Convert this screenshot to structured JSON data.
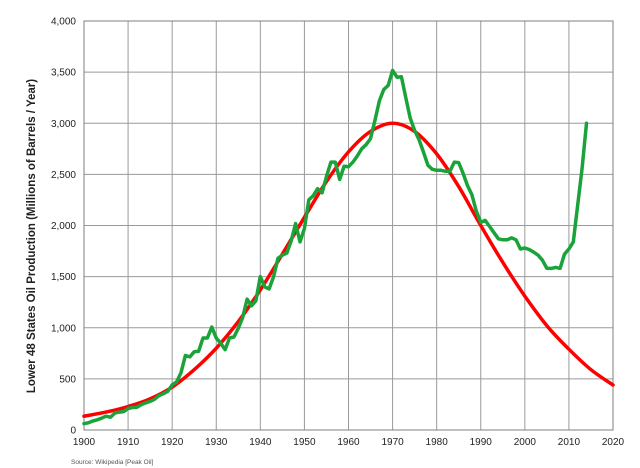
{
  "chart_data": {
    "type": "line",
    "title": "",
    "xlabel": "",
    "ylabel": "Lower 48 States Oil Production (Millions of Barrels / Year)",
    "source": "Source: Wikipedia [Peak Oil]",
    "xlim": [
      1900,
      2020
    ],
    "ylim": [
      0,
      4000
    ],
    "x_ticks": [
      1900,
      1910,
      1920,
      1930,
      1940,
      1950,
      1960,
      1970,
      1980,
      1990,
      2000,
      2010,
      2020
    ],
    "y_ticks": [
      0,
      500,
      1000,
      1500,
      2000,
      2500,
      3000,
      3500,
      4000
    ],
    "y_tick_labels": [
      "0",
      "500",
      "1,000",
      "1,500",
      "2,000",
      "2,500",
      "3,000",
      "3,500",
      "4,000"
    ],
    "grid": true,
    "legend": "none",
    "series": [
      {
        "color": "#ff0000",
        "style": "smooth-curve",
        "points": [
          [
            1900,
            135
          ],
          [
            1905,
            175
          ],
          [
            1910,
            230
          ],
          [
            1915,
            305
          ],
          [
            1920,
            420
          ],
          [
            1925,
            590
          ],
          [
            1930,
            800
          ],
          [
            1935,
            1060
          ],
          [
            1940,
            1370
          ],
          [
            1945,
            1720
          ],
          [
            1950,
            2080
          ],
          [
            1955,
            2430
          ],
          [
            1960,
            2720
          ],
          [
            1965,
            2920
          ],
          [
            1970,
            3000
          ],
          [
            1975,
            2920
          ],
          [
            1980,
            2700
          ],
          [
            1985,
            2380
          ],
          [
            1990,
            2000
          ],
          [
            1995,
            1640
          ],
          [
            2000,
            1310
          ],
          [
            2005,
            1020
          ],
          [
            2010,
            790
          ],
          [
            2015,
            590
          ],
          [
            2020,
            440
          ]
        ]
      },
      {
        "color": "#1aa33a",
        "style": "polyline",
        "points": [
          [
            1900,
            63
          ],
          [
            1901,
            70
          ],
          [
            1902,
            88
          ],
          [
            1903,
            100
          ],
          [
            1904,
            115
          ],
          [
            1905,
            135
          ],
          [
            1906,
            125
          ],
          [
            1907,
            165
          ],
          [
            1908,
            175
          ],
          [
            1909,
            180
          ],
          [
            1910,
            210
          ],
          [
            1911,
            220
          ],
          [
            1912,
            222
          ],
          [
            1913,
            248
          ],
          [
            1914,
            265
          ],
          [
            1915,
            280
          ],
          [
            1916,
            300
          ],
          [
            1917,
            335
          ],
          [
            1918,
            355
          ],
          [
            1919,
            378
          ],
          [
            1920,
            442
          ],
          [
            1921,
            470
          ],
          [
            1922,
            560
          ],
          [
            1923,
            730
          ],
          [
            1924,
            715
          ],
          [
            1925,
            765
          ],
          [
            1926,
            770
          ],
          [
            1927,
            900
          ],
          [
            1928,
            900
          ],
          [
            1929,
            1007
          ],
          [
            1930,
            898
          ],
          [
            1931,
            850
          ],
          [
            1932,
            785
          ],
          [
            1933,
            900
          ],
          [
            1934,
            910
          ],
          [
            1935,
            995
          ],
          [
            1936,
            1100
          ],
          [
            1937,
            1280
          ],
          [
            1938,
            1215
          ],
          [
            1939,
            1265
          ],
          [
            1940,
            1500
          ],
          [
            1941,
            1400
          ],
          [
            1942,
            1380
          ],
          [
            1943,
            1500
          ],
          [
            1944,
            1680
          ],
          [
            1945,
            1710
          ],
          [
            1946,
            1730
          ],
          [
            1947,
            1850
          ],
          [
            1948,
            2020
          ],
          [
            1949,
            1840
          ],
          [
            1950,
            1970
          ],
          [
            1951,
            2250
          ],
          [
            1952,
            2290
          ],
          [
            1953,
            2360
          ],
          [
            1954,
            2320
          ],
          [
            1955,
            2480
          ],
          [
            1956,
            2620
          ],
          [
            1957,
            2620
          ],
          [
            1958,
            2450
          ],
          [
            1959,
            2580
          ],
          [
            1960,
            2575
          ],
          [
            1961,
            2620
          ],
          [
            1962,
            2680
          ],
          [
            1963,
            2750
          ],
          [
            1964,
            2790
          ],
          [
            1965,
            2850
          ],
          [
            1966,
            3030
          ],
          [
            1967,
            3220
          ],
          [
            1968,
            3330
          ],
          [
            1969,
            3370
          ],
          [
            1970,
            3517
          ],
          [
            1971,
            3450
          ],
          [
            1972,
            3455
          ],
          [
            1973,
            3250
          ],
          [
            1974,
            3050
          ],
          [
            1975,
            2930
          ],
          [
            1976,
            2840
          ],
          [
            1977,
            2720
          ],
          [
            1978,
            2590
          ],
          [
            1979,
            2550
          ],
          [
            1980,
            2540
          ],
          [
            1981,
            2540
          ],
          [
            1982,
            2530
          ],
          [
            1983,
            2530
          ],
          [
            1984,
            2620
          ],
          [
            1985,
            2615
          ],
          [
            1986,
            2510
          ],
          [
            1987,
            2390
          ],
          [
            1988,
            2300
          ],
          [
            1989,
            2140
          ],
          [
            1990,
            2030
          ],
          [
            1991,
            2050
          ],
          [
            1992,
            1990
          ],
          [
            1993,
            1930
          ],
          [
            1994,
            1870
          ],
          [
            1995,
            1860
          ],
          [
            1996,
            1860
          ],
          [
            1997,
            1880
          ],
          [
            1998,
            1860
          ],
          [
            1999,
            1770
          ],
          [
            2000,
            1780
          ],
          [
            2001,
            1765
          ],
          [
            2002,
            1740
          ],
          [
            2003,
            1710
          ],
          [
            2004,
            1660
          ],
          [
            2005,
            1580
          ],
          [
            2006,
            1580
          ],
          [
            2007,
            1590
          ],
          [
            2008,
            1580
          ],
          [
            2009,
            1720
          ],
          [
            2010,
            1770
          ],
          [
            2011,
            1840
          ],
          [
            2012,
            2200
          ],
          [
            2013,
            2560
          ],
          [
            2014,
            3000
          ]
        ]
      }
    ]
  }
}
